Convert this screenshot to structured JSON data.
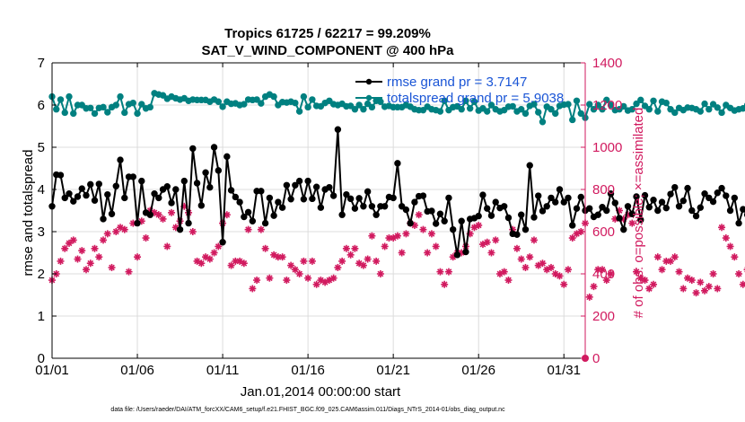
{
  "chart_data": {
    "type": "line",
    "title": "Tropics 61725 / 62217 = 99.209%",
    "subtitle": "SAT_V_WIND_COMPONENT @ 400 hPa",
    "xlabel": "Jan.01,2014 00:00:00 start",
    "ylabel": "rmse and totalspread",
    "y2label": "# of obs: o=possible; ×=assimilated",
    "footnote": "data file: /Users/raeder/DAI/ATM_forcXX/CAM6_setup/f.e21.FHIST_BGC.f09_025.CAM6assim.011/Diags_NTrS_2014-01/obs_diag_output.nc",
    "xlim": [
      0,
      31.25
    ],
    "ylim": [
      0,
      7
    ],
    "y2lim": [
      0,
      1400
    ],
    "x_ticks": [
      0,
      5,
      10,
      15,
      20,
      25,
      30
    ],
    "x_tick_labels": [
      "01/01",
      "01/06",
      "01/11",
      "01/16",
      "01/21",
      "01/26",
      "01/31"
    ],
    "y_ticks": [
      0,
      1,
      2,
      3,
      4,
      5,
      6,
      7
    ],
    "y_tick_labels": [
      "0",
      "1",
      "2",
      "3",
      "4",
      "5",
      "6",
      "7"
    ],
    "y2_ticks": [
      0,
      200,
      400,
      600,
      800,
      1000,
      1200,
      1400
    ],
    "y2_tick_labels": [
      "0",
      "200",
      "400",
      "600",
      "800",
      "1000",
      "1200",
      "1400"
    ],
    "x_step_days": 0.25,
    "series": [
      {
        "name": "rmse grand pr = 3.7147",
        "color": "#000000",
        "axis": "left",
        "marker": "filled-circle",
        "values": [
          3.6,
          4.35,
          4.34,
          3.8,
          3.9,
          3.72,
          3.83,
          4.02,
          3.86,
          4.12,
          3.74,
          4.13,
          3.3,
          3.88,
          3.42,
          4.08,
          4.7,
          3.8,
          4.3,
          4.3,
          3.2,
          4.2,
          3.45,
          3.4,
          3.9,
          3.8,
          4.0,
          4.07,
          3.68,
          4.0,
          3.05,
          4.2,
          3.2,
          4.97,
          4.15,
          3.62,
          4.4,
          4.05,
          5.0,
          4.45,
          2.75,
          4.78,
          3.98,
          3.82,
          3.7,
          3.35,
          3.46,
          3.25,
          3.96,
          3.96,
          3.2,
          3.8,
          3.38,
          3.7,
          3.57,
          4.1,
          3.77,
          4.1,
          4.2,
          3.77,
          4.2,
          3.78,
          4.06,
          3.57,
          4.0,
          4.05,
          3.85,
          5.42,
          3.4,
          3.88,
          3.78,
          3.55,
          3.79,
          3.6,
          3.95,
          3.6,
          3.4,
          3.6,
          3.6,
          3.82,
          3.8,
          4.62,
          3.6,
          3.52,
          3.2,
          3.7,
          3.84,
          3.85,
          3.48,
          3.49,
          3.19,
          3.42,
          3.25,
          3.8,
          3.05,
          2.45,
          3.25,
          2.52,
          3.3,
          3.32,
          3.37,
          3.87,
          3.55,
          3.38,
          3.7,
          3.56,
          3.6,
          3.33,
          2.95,
          2.93,
          3.4,
          3.05,
          4.57,
          3.34,
          3.85,
          3.49,
          3.6,
          3.8,
          3.7,
          4.0,
          3.7,
          3.8,
          3.15,
          3.55,
          3.82,
          3.5,
          3.55,
          3.35,
          3.4,
          3.58,
          3.5,
          3.9,
          3.68,
          3.32,
          3.05,
          3.6,
          3.42,
          3.83,
          3.28,
          3.86,
          3.58,
          3.75,
          3.5,
          3.7,
          3.56,
          3.89,
          4.05,
          3.6,
          3.73,
          4.03,
          3.5,
          3.37,
          3.57,
          3.9,
          3.8,
          3.71,
          3.92,
          4.03,
          3.85,
          3.5,
          3.8,
          3.2,
          3.53,
          3.4,
          3.7,
          4.1,
          3.64,
          3.9,
          3.95,
          3.65,
          4.24,
          3.72,
          3.98,
          3.6,
          3.77,
          3.65,
          3.1,
          3.86,
          3.7,
          3.35
        ]
      },
      {
        "name": "totalspread grand pr = 5.9038",
        "color": "#008080",
        "axis": "left",
        "marker": "filled-circle",
        "values": [
          6.2,
          5.9,
          6.13,
          5.82,
          6.2,
          5.8,
          6.0,
          6.0,
          5.92,
          5.93,
          5.8,
          5.93,
          5.95,
          5.83,
          5.95,
          6.0,
          6.2,
          5.82,
          6.02,
          6.05,
          5.8,
          6.02,
          5.92,
          5.95,
          6.28,
          6.25,
          6.23,
          6.15,
          6.2,
          6.16,
          6.13,
          6.16,
          6.1,
          6.13,
          6.12,
          6.12,
          6.12,
          6.08,
          6.13,
          6.08,
          5.96,
          6.08,
          6.03,
          6.04,
          6.0,
          6.02,
          6.13,
          6.12,
          6.13,
          6.04,
          6.2,
          6.25,
          6.2,
          6.0,
          6.07,
          6.06,
          6.08,
          6.05,
          5.85,
          6.2,
          5.95,
          6.13,
          5.98,
          5.97,
          6.05,
          6.1,
          6.02,
          6.0,
          6.03,
          5.97,
          5.98,
          5.9,
          6.0,
          5.9,
          6.03,
          5.95,
          6.1,
          6.08,
          5.96,
          5.98,
          5.95,
          5.95,
          5.95,
          6.0,
          5.96,
          5.9,
          5.88,
          5.88,
          5.96,
          5.9,
          5.88,
          5.85,
          6.1,
          5.88,
          5.95,
          5.97,
          5.9,
          6.1,
          5.92,
          6.08,
          5.87,
          5.92,
          5.85,
          6.0,
          5.9,
          5.85,
          5.88,
          5.96,
          5.97,
          5.85,
          5.9,
          5.8,
          5.98,
          6.02,
          5.83,
          5.6,
          5.96,
          5.9,
          5.8,
          5.98,
          6.01,
          6.02,
          5.65,
          6.1,
          5.8,
          5.7,
          6.02,
          5.9,
          6.0,
          5.9,
          6.12,
          6.0,
          5.88,
          5.9,
          5.97,
          5.87,
          5.9,
          6.03,
          6.12,
          5.98,
          5.9,
          6.1,
          5.85,
          6.08,
          6.05,
          5.9,
          5.82,
          5.93,
          5.88,
          5.94,
          5.93,
          5.9,
          5.85,
          6.03,
          5.9,
          6.02,
          5.94,
          5.82,
          6.0,
          5.93,
          5.87,
          5.9,
          5.92,
          6.0,
          5.78,
          5.8,
          5.85,
          6.0,
          5.77,
          5.84,
          5.92,
          5.75,
          5.9,
          5.95,
          5.72,
          5.6,
          5.72,
          5.7,
          5.68,
          5.7,
          5.72,
          5.72
        ]
      },
      {
        "name": "# obs assimilated",
        "color": "#d11a5f",
        "axis": "right",
        "marker": "asterisk",
        "values": [
          370,
          400,
          460,
          520,
          545,
          560,
          470,
          510,
          420,
          450,
          520,
          480,
          560,
          590,
          430,
          600,
          620,
          610,
          410,
          640,
          480,
          650,
          570,
          700,
          690,
          680,
          660,
          530,
          690,
          620,
          650,
          720,
          690,
          600,
          460,
          450,
          480,
          470,
          500,
          530,
          640,
          680,
          440,
          460,
          460,
          450,
          610,
          330,
          370,
          610,
          520,
          380,
          490,
          480,
          480,
          370,
          440,
          420,
          400,
          460,
          380,
          460,
          350,
          370,
          360,
          370,
          380,
          430,
          460,
          520,
          490,
          520,
          450,
          440,
          470,
          580,
          460,
          400,
          530,
          570,
          570,
          580,
          500,
          590,
          640,
          630,
          680,
          610,
          500,
          590,
          530,
          410,
          350,
          410,
          480,
          500,
          500,
          530,
          590,
          620,
          630,
          540,
          550,
          500,
          560,
          400,
          410,
          370,
          610,
          520,
          470,
          430,
          480,
          560,
          440,
          450,
          420,
          430,
          400,
          390,
          350,
          420,
          570,
          590,
          600,
          640,
          290,
          340,
          420,
          420,
          370,
          400,
          660,
          700,
          660,
          680,
          640,
          410,
          380,
          370,
          330,
          350,
          480,
          420,
          460,
          460,
          480,
          410,
          330,
          380,
          370,
          310,
          360,
          320,
          340,
          400,
          330,
          620,
          570,
          530,
          480,
          400,
          350,
          420,
          380,
          360,
          420,
          350,
          350,
          450,
          480,
          390,
          430,
          490,
          410,
          420,
          620,
          630,
          640,
          550
        ]
      }
    ],
    "right_axis_zero_marker": 0
  }
}
